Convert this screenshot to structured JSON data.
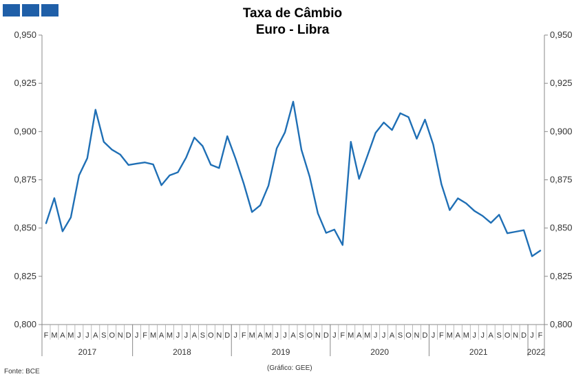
{
  "header": {
    "logo_color": "#1f5fa8"
  },
  "chart_data": {
    "type": "line",
    "title": "Taxa de Câmbio",
    "subtitle": "Euro - Libra",
    "ylim": [
      0.8,
      0.95
    ],
    "yticks": [
      "0,800",
      "0,825",
      "0,850",
      "0,875",
      "0,900",
      "0,925",
      "0,950"
    ],
    "ytick_values": [
      0.8,
      0.825,
      0.85,
      0.875,
      0.9,
      0.925,
      0.95
    ],
    "grid": false,
    "line_color": "#1f6fb5",
    "month_labels": [
      "F",
      "M",
      "A",
      "M",
      "J",
      "J",
      "A",
      "S",
      "O",
      "N",
      "D",
      "J",
      "F",
      "M",
      "A",
      "M",
      "J",
      "J",
      "A",
      "S",
      "O",
      "N",
      "D",
      "J",
      "F",
      "M",
      "A",
      "M",
      "J",
      "J",
      "A",
      "S",
      "O",
      "N",
      "D",
      "J",
      "F",
      "M",
      "A",
      "M",
      "J",
      "J",
      "A",
      "S",
      "O",
      "N",
      "D",
      "J",
      "F",
      "M",
      "A",
      "M",
      "J",
      "J",
      "A",
      "S",
      "O",
      "N",
      "D",
      "J",
      "F"
    ],
    "year_labels": [
      "2017",
      "2018",
      "2019",
      "2020",
      "2021",
      "2022"
    ],
    "year_start_index": [
      0,
      11,
      23,
      35,
      47,
      59
    ],
    "year_length": [
      11,
      12,
      12,
      12,
      12,
      2
    ],
    "values": [
      0.8525,
      0.8655,
      0.8483,
      0.8555,
      0.8773,
      0.8862,
      0.9113,
      0.8947,
      0.8906,
      0.8881,
      0.8827,
      0.8834,
      0.884,
      0.883,
      0.8722,
      0.8773,
      0.8789,
      0.8865,
      0.8969,
      0.8925,
      0.8828,
      0.8811,
      0.8976,
      0.886,
      0.873,
      0.8583,
      0.8618,
      0.872,
      0.8913,
      0.8996,
      0.9155,
      0.8906,
      0.8766,
      0.8576,
      0.8475,
      0.8492,
      0.8412,
      0.8947,
      0.8755,
      0.8873,
      0.8993,
      0.9047,
      0.9008,
      0.9095,
      0.9075,
      0.8963,
      0.9062,
      0.8933,
      0.8727,
      0.8593,
      0.8654,
      0.8628,
      0.8589,
      0.8563,
      0.8527,
      0.8569,
      0.8473,
      0.8481,
      0.8489,
      0.8354,
      0.8383
    ]
  },
  "footer": {
    "source": "Fonte: BCE",
    "credit": "(Gráfico: GEE)"
  }
}
